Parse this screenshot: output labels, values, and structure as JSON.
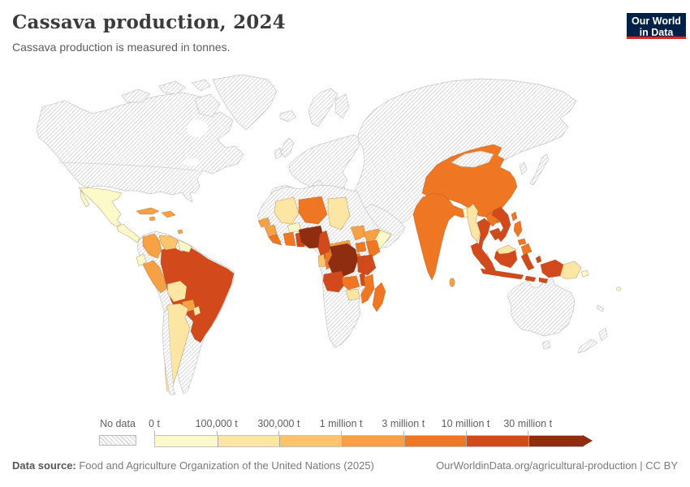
{
  "header": {
    "title": "Cassava production, 2024",
    "subtitle": "Cassava production is measured in tonnes.",
    "logo": {
      "line1": "Our World",
      "line2": "in Data",
      "bg": "#002147",
      "accent": "#e0231e"
    }
  },
  "legend": {
    "no_data_label": "No data"
  },
  "footer": {
    "source_label": "Data source:",
    "source_text": " Food and Agriculture Organization of the United Nations (2025)",
    "right_text": "OurWorldinData.org/agricultural-production | CC BY"
  },
  "chart_data": {
    "type": "choropleth",
    "title": "Cassava production, 2024",
    "unit": "tonnes",
    "year": 2024,
    "legend_position": "bottom",
    "no_data_style": "gray-diagonal-hatch",
    "bins": [
      {
        "label": "0 - 100,000 t",
        "threshold_label": "0 t",
        "color": "#fdfaca"
      },
      {
        "label": "100,000 - 300,000 t",
        "threshold_label": "100,000 t",
        "color": "#fde5a3"
      },
      {
        "label": "300,000 - 1 million t",
        "threshold_label": "300,000 t",
        "color": "#fbc46d"
      },
      {
        "label": "1 - 3 million t",
        "threshold_label": "1 million t",
        "color": "#f8a044"
      },
      {
        "label": "3 - 10 million t",
        "threshold_label": "3 million t",
        "color": "#ef7622"
      },
      {
        "label": "10 - 30 million t",
        "threshold_label": "10 million t",
        "color": "#d2491c"
      },
      {
        "label": "30+ million t",
        "threshold_label": "30 million t",
        "color": "#8f2d11"
      }
    ],
    "regions": {
      "mexico": "0 - 100,000 t",
      "central_america": "0 - 100,000 t",
      "cuba": "1 - 3 million t",
      "jamaica": "1 - 3 million t",
      "hispaniola": "1 - 3 million t",
      "trinidad": "1 - 3 million t",
      "colombia": "1 - 3 million t",
      "venezuela": "300,000 - 1 million t",
      "guyanas": "0 - 100,000 t",
      "ecuador": "0 - 100,000 t",
      "peru": "1 - 3 million t",
      "brazil": "10 - 30 million t",
      "bolivia": "100,000 - 300,000 t",
      "paraguay": "1 - 3 million t",
      "uruguay": "100,000 - 300,000 t",
      "argentina": "100,000 - 300,000 t",
      "senegal": "1 - 3 million t",
      "mali": "100,000 - 300,000 t",
      "burkina_faso": "0 - 100,000 t",
      "niger": "3 - 10 million t",
      "chad": "100,000 - 300,000 t",
      "guinea": "1 - 3 million t",
      "sierra_leone_liberia": "3 - 10 million t",
      "ivory_coast": "3 - 10 million t",
      "ghana": "10 - 30 million t",
      "togo_benin": "1 - 3 million t",
      "nigeria": "30+ million t",
      "cameroon": "10 - 30 million t",
      "central_african_republic": "1 - 3 million t",
      "south_sudan": "1 - 3 million t",
      "ethiopia": "1 - 3 million t",
      "somalia": "0 - 100,000 t",
      "uganda": "3 - 10 million t",
      "kenya": "3 - 10 million t",
      "rwanda_burundi": "3 - 10 million t",
      "gabon": "300,000 - 1 million t",
      "congo": "3 - 10 million t",
      "dr_congo": "30+ million t",
      "tanzania": "10 - 30 million t",
      "angola": "10 - 30 million t",
      "zambia": "3 - 10 million t",
      "malawi": "10 - 30 million t",
      "mozambique": "3 - 10 million t",
      "zimbabwe": "100,000 - 300,000 t",
      "madagascar": "3 - 10 million t",
      "india": "3 - 10 million t",
      "bangladesh": "0 - 100,000 t",
      "sri_lanka": "1 - 3 million t",
      "myanmar": "100,000 - 300,000 t",
      "china": "3 - 10 million t",
      "taiwan": "3 - 10 million t",
      "hainan": "3 - 10 million t",
      "thailand": "10 - 30 million t",
      "laos": "3 - 10 million t",
      "cambodia": "10 - 30 million t",
      "vietnam": "10 - 30 million t",
      "malaysia_peninsula": "100,000 - 300,000 t",
      "malaysia_borneo": "100,000 - 300,000 t",
      "sumatra": "10 - 30 million t",
      "kalimantan": "10 - 30 million t",
      "java": "10 - 30 million t",
      "sulawesi": "10 - 30 million t",
      "moluccas": "10 - 30 million t",
      "lesser_sunda": "10 - 30 million t",
      "papua_indonesia": "10 - 30 million t",
      "papua_new_guinea": "100,000 - 300,000 t",
      "philippines_luzon": "3 - 10 million t",
      "philippines_visayas": "3 - 10 million t",
      "philippines_mindanao": "3 - 10 million t",
      "solomon_islands": "0 - 100,000 t",
      "fiji": "0 - 100,000 t"
    }
  }
}
